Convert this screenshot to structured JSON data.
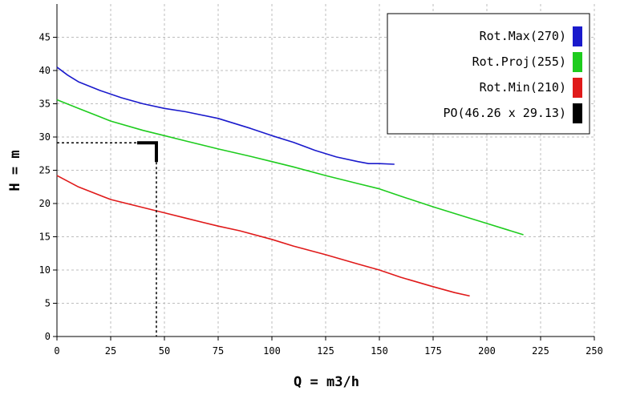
{
  "chart_data": {
    "type": "line",
    "title": "",
    "xlabel": "Q = m3/h",
    "ylabel": "H = m",
    "xlim": [
      0,
      250
    ],
    "ylim": [
      0,
      50
    ],
    "xticks": [
      0,
      25,
      50,
      75,
      100,
      125,
      150,
      175,
      200,
      225,
      250
    ],
    "yticks": [
      0,
      5,
      10,
      15,
      20,
      25,
      30,
      35,
      40,
      45
    ],
    "grid": true,
    "legend_position": "top-right",
    "series": [
      {
        "name": "Rot.Max(270)",
        "color": "#1a1acc",
        "x": [
          0,
          5,
          10,
          20,
          30,
          40,
          50,
          60,
          75,
          90,
          100,
          110,
          120,
          130,
          140,
          145,
          150,
          157
        ],
        "y": [
          40.5,
          39.3,
          38.3,
          37.0,
          35.9,
          35.0,
          34.3,
          33.8,
          32.8,
          31.3,
          30.2,
          29.2,
          28.0,
          27.0,
          26.3,
          26.0,
          26.0,
          25.9
        ]
      },
      {
        "name": "Rot.Proj(255)",
        "color": "#1ecc1e",
        "x": [
          0,
          10,
          25,
          40,
          50,
          60,
          75,
          90,
          100,
          110,
          125,
          140,
          150,
          160,
          175,
          190,
          200,
          210,
          217
        ],
        "y": [
          35.6,
          34.3,
          32.4,
          31.0,
          30.2,
          29.4,
          28.2,
          27.1,
          26.3,
          25.5,
          24.2,
          23.0,
          22.2,
          21.1,
          19.5,
          18.0,
          17.0,
          16.0,
          15.3
        ]
      },
      {
        "name": "Rot.Min(210)",
        "color": "#e01a1a",
        "x": [
          0,
          10,
          25,
          40,
          50,
          60,
          75,
          85,
          100,
          110,
          125,
          140,
          150,
          160,
          175,
          185,
          192
        ],
        "y": [
          24.2,
          22.5,
          20.6,
          19.4,
          18.6,
          17.8,
          16.6,
          15.9,
          14.6,
          13.6,
          12.3,
          10.9,
          10.0,
          8.9,
          7.5,
          6.6,
          6.1
        ]
      }
    ],
    "operating_point": {
      "name": "PO(46.26 x 29.13)",
      "color": "#000000",
      "q": 46.26,
      "h": 29.13
    }
  }
}
